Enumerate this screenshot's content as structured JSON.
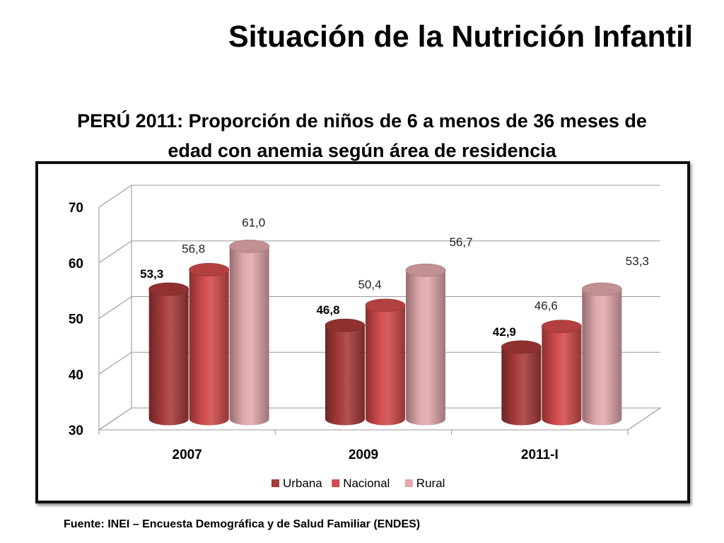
{
  "slide": {
    "title": "Situación de la Nutrición Infantil",
    "subtitle_line1": "PERÚ 2011: Proporción de niños de 6 a menos de 36 meses de",
    "subtitle_line2": "edad con anemia según área de residencia",
    "source": "Fuente: INEI – Encuesta Demográfica y de Salud Familiar (ENDES)"
  },
  "chart_data": {
    "type": "bar",
    "style": "3d-cylinder",
    "categories": [
      "2007",
      "2009",
      "2011-I"
    ],
    "series": [
      {
        "name": "Urbana",
        "values": [
          53.3,
          46.8,
          42.9
        ],
        "labels": [
          "53,3",
          "46,8",
          "42,9"
        ],
        "color": "#A83A3A",
        "label_bold": true
      },
      {
        "name": "Nacional",
        "values": [
          56.8,
          50.4,
          46.6
        ],
        "labels": [
          "56,8",
          "50,4",
          "46,6"
        ],
        "color": "#D24B4B",
        "label_bold": false
      },
      {
        "name": "Rural",
        "values": [
          61.0,
          56.7,
          53.3
        ],
        "labels": [
          "61,0",
          "56,7",
          "53,3"
        ],
        "color": "#E3A9AC",
        "label_bold": false
      }
    ],
    "y_ticks": [
      "30",
      "40",
      "50",
      "60",
      "70"
    ],
    "ylim": [
      30,
      70
    ],
    "grid": true,
    "legend": "bottom"
  }
}
